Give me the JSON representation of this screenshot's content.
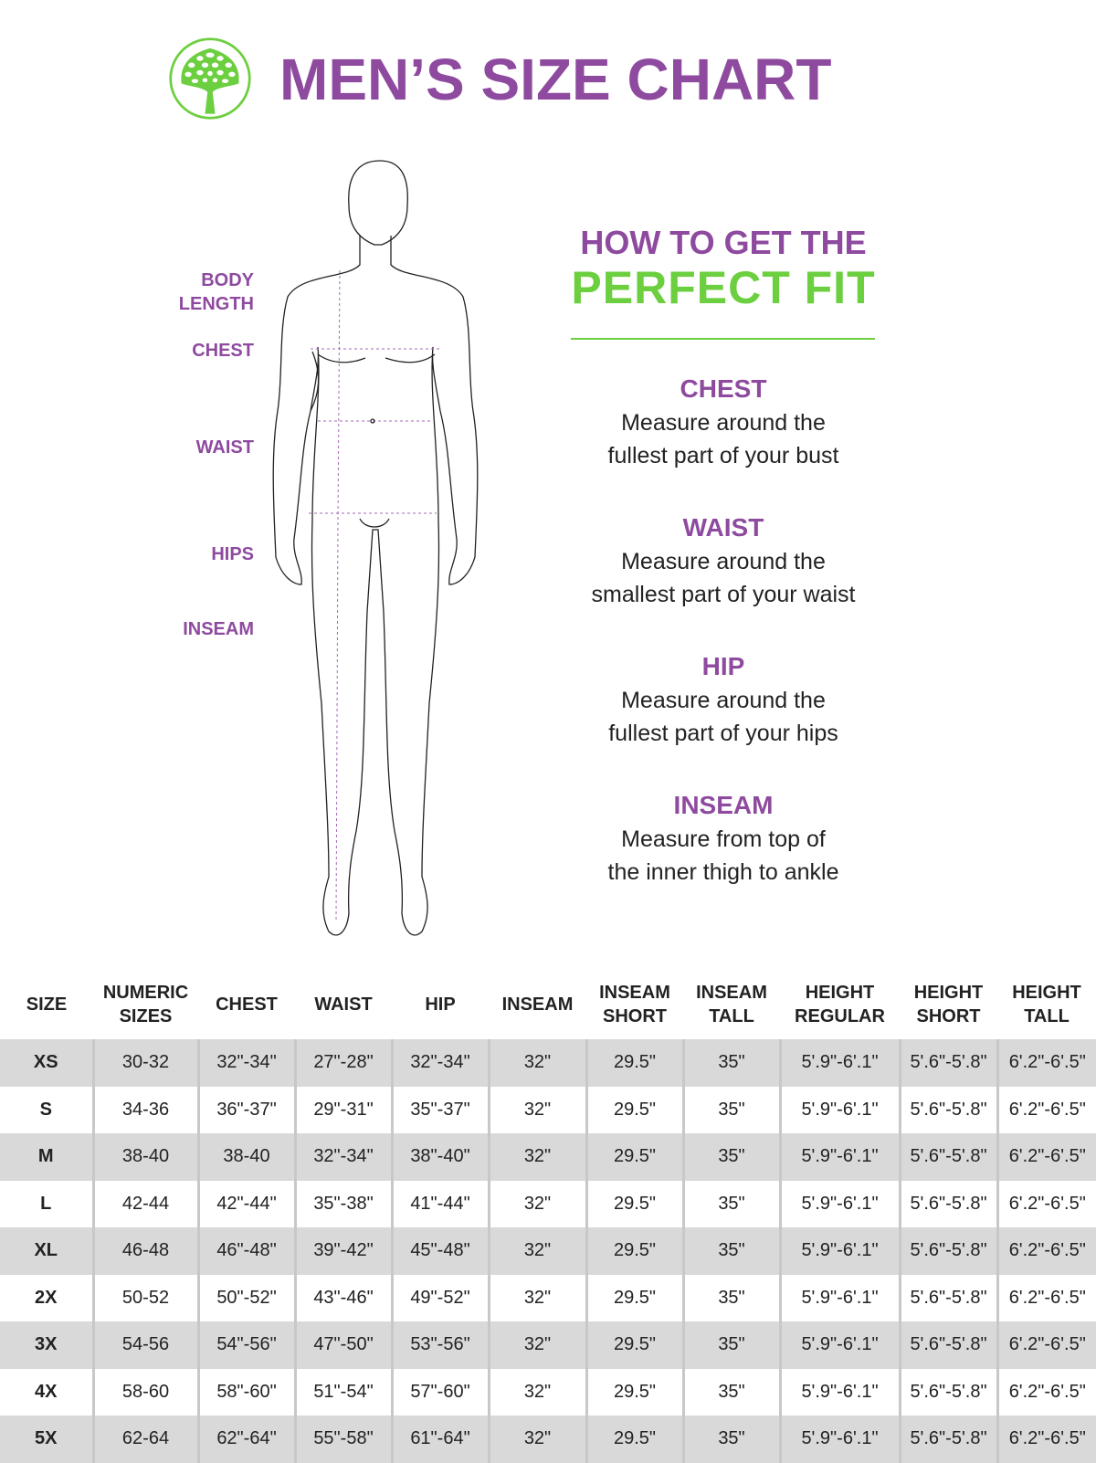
{
  "header": {
    "title": "MEN’S SIZE CHART",
    "logo_icon": "tree-logo-icon"
  },
  "colors": {
    "purple": "#8e4a9f",
    "green": "#6ccf3f",
    "row_shade": "#d9d9d9"
  },
  "body_labels": {
    "body_length_1": "BODY",
    "body_length_2": "LENGTH",
    "chest": "CHEST",
    "waist": "WAIST",
    "hips": "HIPS",
    "inseam": "INSEAM"
  },
  "guide": {
    "heading_1": "HOW TO GET THE",
    "heading_2": "PERFECT FIT",
    "tips": [
      {
        "title": "CHEST",
        "line1": "Measure around the",
        "line2": "fullest part of your bust"
      },
      {
        "title": "WAIST",
        "line1": "Measure around the",
        "line2": "smallest part of your waist"
      },
      {
        "title": "HIP",
        "line1": "Measure around the",
        "line2": "fullest part of your hips"
      },
      {
        "title": "INSEAM",
        "line1": "Measure from top of",
        "line2": "the inner thigh to ankle"
      }
    ]
  },
  "table": {
    "headers": [
      [
        "SIZE",
        ""
      ],
      [
        "NUMERIC",
        "SIZES"
      ],
      [
        "CHEST",
        ""
      ],
      [
        "WAIST",
        ""
      ],
      [
        "HIP",
        ""
      ],
      [
        "INSEAM",
        ""
      ],
      [
        "INSEAM",
        "SHORT"
      ],
      [
        "INSEAM",
        "TALL"
      ],
      [
        "HEIGHT",
        "REGULAR"
      ],
      [
        "HEIGHT",
        "SHORT"
      ],
      [
        "HEIGHT",
        "TALL"
      ]
    ],
    "rows": [
      [
        "XS",
        "30-32",
        "32\"-34\"",
        "27\"-28\"",
        "32\"-34\"",
        "32\"",
        "29.5\"",
        "35\"",
        "5'.9\"-6'.1\"",
        "5'.6\"-5'.8\"",
        "6'.2\"-6'.5\""
      ],
      [
        "S",
        "34-36",
        "36\"-37\"",
        "29\"-31\"",
        "35\"-37\"",
        "32\"",
        "29.5\"",
        "35\"",
        "5'.9\"-6'.1\"",
        "5'.6\"-5'.8\"",
        "6'.2\"-6'.5\""
      ],
      [
        "M",
        "38-40",
        "38-40",
        "32\"-34\"",
        "38\"-40\"",
        "32\"",
        "29.5\"",
        "35\"",
        "5'.9\"-6'.1\"",
        "5'.6\"-5'.8\"",
        "6'.2\"-6'.5\""
      ],
      [
        "L",
        "42-44",
        "42\"-44\"",
        "35\"-38\"",
        "41\"-44\"",
        "32\"",
        "29.5\"",
        "35\"",
        "5'.9\"-6'.1\"",
        "5'.6\"-5'.8\"",
        "6'.2\"-6'.5\""
      ],
      [
        "XL",
        "46-48",
        "46\"-48\"",
        "39\"-42\"",
        "45\"-48\"",
        "32\"",
        "29.5\"",
        "35\"",
        "5'.9\"-6'.1\"",
        "5'.6\"-5'.8\"",
        "6'.2\"-6'.5\""
      ],
      [
        "2X",
        "50-52",
        "50\"-52\"",
        "43\"-46\"",
        "49\"-52\"",
        "32\"",
        "29.5\"",
        "35\"",
        "5'.9\"-6'.1\"",
        "5'.6\"-5'.8\"",
        "6'.2\"-6'.5\""
      ],
      [
        "3X",
        "54-56",
        "54\"-56\"",
        "47\"-50\"",
        "53\"-56\"",
        "32\"",
        "29.5\"",
        "35\"",
        "5'.9\"-6'.1\"",
        "5'.6\"-5'.8\"",
        "6'.2\"-6'.5\""
      ],
      [
        "4X",
        "58-60",
        "58\"-60\"",
        "51\"-54\"",
        "57\"-60\"",
        "32\"",
        "29.5\"",
        "35\"",
        "5'.9\"-6'.1\"",
        "5'.6\"-5'.8\"",
        "6'.2\"-6'.5\""
      ],
      [
        "5X",
        "62-64",
        "62\"-64\"",
        "55\"-58\"",
        "61\"-64\"",
        "32\"",
        "29.5\"",
        "35\"",
        "5'.9\"-6'.1\"",
        "5'.6\"-5'.8\"",
        "6'.2\"-6'.5\""
      ]
    ]
  }
}
